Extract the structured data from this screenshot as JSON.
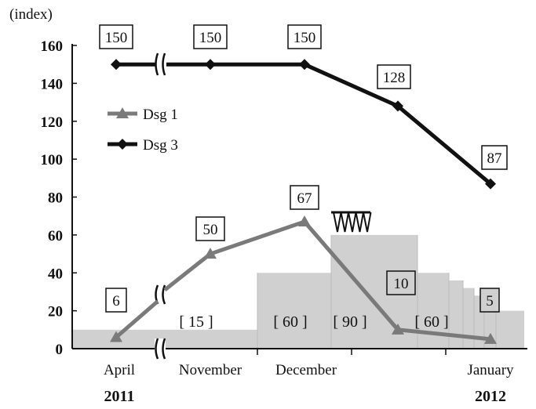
{
  "chart_data": {
    "type": "line",
    "ylabel": "(index)",
    "ylim": [
      0,
      160
    ],
    "yticks": [
      "0",
      "20",
      "40",
      "60",
      "80",
      "100",
      "120",
      "140",
      "160"
    ],
    "x": [
      "April 2011",
      "November",
      "December",
      "",
      "January 2012"
    ],
    "x_axis_labels": [
      {
        "text": "April",
        "sub": "2011"
      },
      {
        "text": "November",
        "sub": ""
      },
      {
        "text": "December",
        "sub": ""
      },
      {
        "text": "January",
        "sub": "2012"
      }
    ],
    "series": [
      {
        "name": "Dsg 1",
        "color": "#7a7a7a",
        "marker": "triangle",
        "values": [
          6,
          50,
          67,
          10,
          5
        ],
        "labels": [
          "6",
          "50",
          "67",
          "10",
          "5"
        ]
      },
      {
        "name": "Dsg 3",
        "color": "#111111",
        "marker": "diamond",
        "values": [
          150,
          150,
          150,
          128,
          87
        ],
        "labels": [
          "150",
          "150",
          "150",
          "128",
          "87"
        ]
      }
    ],
    "background_area": {
      "color": "#d0d0d0",
      "levels": [
        10,
        10,
        40,
        60,
        40,
        36,
        32,
        28,
        24,
        20
      ],
      "bracket_labels": [
        "[ 15 ]",
        "[ 60 ]",
        "[ 90 ]",
        "[ 60 ]"
      ]
    },
    "axis_break": true,
    "legend": "left-upper",
    "grid": false
  }
}
